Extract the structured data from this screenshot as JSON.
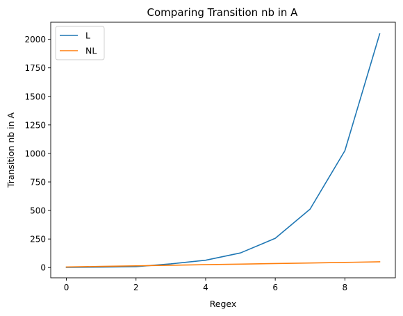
{
  "chart_data": {
    "type": "line",
    "title": "Comparing Transition nb in A",
    "xlabel": "Regex",
    "ylabel": "Transition nb in A",
    "xlim": [
      -0.45,
      9.45
    ],
    "ylim": [
      -90,
      2150
    ],
    "xticks": [
      0,
      2,
      4,
      6,
      8
    ],
    "yticks": [
      0,
      250,
      500,
      750,
      1000,
      1250,
      1500,
      1750,
      2000
    ],
    "grid": false,
    "legend_position": "top-left",
    "x": [
      0,
      1,
      2,
      3,
      4,
      5,
      6,
      7,
      8,
      9
    ],
    "series": [
      {
        "name": "L",
        "color": "#1f77b4",
        "values": [
          2,
          4,
          8,
          32,
          64,
          128,
          256,
          512,
          1024,
          2048
        ]
      },
      {
        "name": "NL",
        "color": "#ff7f0e",
        "values": [
          5,
          10,
          15,
          20,
          25,
          30,
          35,
          40,
          45,
          50
        ]
      }
    ]
  }
}
